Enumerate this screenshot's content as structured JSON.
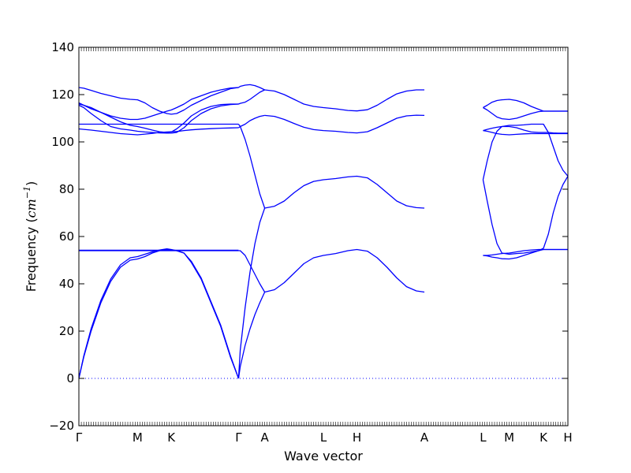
{
  "chart_data": {
    "type": "line",
    "title": "",
    "xlabel": "Wave vector",
    "ylabel": {
      "prefix": "Frequency (",
      "unit_main": "cm",
      "unit_exp": "−1",
      "suffix": ")"
    },
    "ylim": [
      -20,
      140
    ],
    "yticks": [
      -20,
      0,
      20,
      40,
      60,
      80,
      100,
      120,
      140
    ],
    "ytick_labels": [
      "−20",
      "0",
      "20",
      "40",
      "60",
      "80",
      "100",
      "120",
      "140"
    ],
    "xlim": [
      0,
      2.0
    ],
    "high_symmetry_points": [
      {
        "label": "Γ",
        "x": 0.0
      },
      {
        "label": "M",
        "x": 0.24
      },
      {
        "label": "K",
        "x": 0.378
      },
      {
        "label": "Γ",
        "x": 0.653
      },
      {
        "label": "A",
        "x": 0.76
      },
      {
        "label": "L",
        "x": 1.0
      },
      {
        "label": "H",
        "x": 1.137
      },
      {
        "label": "A",
        "x": 1.413
      },
      {
        "label": "L",
        "x": 1.653
      },
      {
        "label": "M",
        "x": 1.76
      },
      {
        "label": "K",
        "x": 1.9
      },
      {
        "label": "H",
        "x": 2.0
      }
    ],
    "zero_line": {
      "y": 0,
      "style": "dotted",
      "color": "#0000ff"
    },
    "line_color": "#0000ff",
    "segments": [
      {
        "name": "Γ-M-K-Γ",
        "x": [
          0.0,
          0.02,
          0.05,
          0.09,
          0.13,
          0.17,
          0.21,
          0.24,
          0.27,
          0.3,
          0.33,
          0.36,
          0.378,
          0.4,
          0.43,
          0.46,
          0.5,
          0.54,
          0.58,
          0.62,
          0.653
        ],
        "bands": [
          [
            0,
            9,
            20,
            32,
            41,
            47,
            50,
            50.5,
            51.5,
            53,
            54,
            54.5,
            54.3,
            54,
            53,
            49,
            42,
            32,
            22,
            9,
            0
          ],
          [
            0,
            9.5,
            21,
            33,
            42,
            48,
            51,
            51.5,
            52.5,
            53.5,
            54.3,
            54.8,
            54.5,
            54,
            53,
            49.5,
            42.5,
            32.5,
            22.5,
            9.5,
            0
          ],
          [
            54,
            54,
            54,
            54,
            54,
            54,
            54,
            54,
            54,
            54,
            54,
            54,
            54,
            54,
            54,
            54,
            54,
            54,
            54,
            54,
            54
          ],
          [
            54.2,
            54.2,
            54.2,
            54.2,
            54.2,
            54.2,
            54.2,
            54.2,
            54.2,
            54.2,
            54.2,
            54.2,
            54.2,
            54.2,
            54.2,
            54.2,
            54.2,
            54.2,
            54.2,
            54.2,
            54.2
          ],
          [
            105.5,
            105.3,
            105,
            104.5,
            104,
            103.5,
            103.2,
            103,
            103.3,
            103.6,
            104,
            104.2,
            104.3,
            104.4,
            104.8,
            105.1,
            105.4,
            105.6,
            105.8,
            105.9,
            106
          ],
          [
            115.5,
            114.5,
            112,
            109,
            106.5,
            105.5,
            105,
            104.5,
            104.2,
            104,
            103.8,
            103.7,
            103.7,
            104,
            106,
            109,
            112,
            114,
            115.2,
            115.8,
            116
          ],
          [
            107.5,
            107.5,
            107.5,
            107.5,
            107.5,
            107.5,
            107.5,
            107.5,
            107.5,
            107.5,
            107.5,
            107.5,
            107.5,
            107.5,
            107.5,
            107.5,
            107.5,
            107.5,
            107.5,
            107.5,
            107.5
          ],
          [
            116,
            115.5,
            114.5,
            112.5,
            110.5,
            108.5,
            107,
            106.5,
            105.8,
            105,
            104.3,
            104,
            104.2,
            105.5,
            108,
            111,
            113.5,
            115,
            115.8,
            116,
            116
          ],
          [
            123,
            122.7,
            121.8,
            120.5,
            119.5,
            118.5,
            118,
            117.8,
            116.5,
            114.5,
            113,
            112,
            111.7,
            112,
            113.5,
            115.5,
            117.5,
            119.5,
            121,
            122.5,
            123
          ],
          [
            116.5,
            115.5,
            114,
            112.5,
            111,
            110,
            109.5,
            109.5,
            110,
            111,
            112,
            113,
            113.5,
            114.5,
            116,
            118,
            119.5,
            121,
            122,
            122.8,
            123
          ]
        ]
      },
      {
        "name": "Γ-A",
        "x": [
          0.653,
          0.66,
          0.68,
          0.7,
          0.72,
          0.74,
          0.76
        ],
        "bands": [
          [
            0,
            5,
            14,
            21,
            27,
            32,
            36.5
          ],
          [
            0,
            12,
            30,
            45,
            57,
            66,
            72
          ],
          [
            54,
            54,
            52,
            48,
            44,
            40,
            36.5
          ],
          [
            107.5,
            106.5,
            101,
            94,
            86,
            78,
            72
          ],
          [
            106,
            106.5,
            107.5,
            109,
            110,
            110.8,
            111.2
          ],
          [
            116,
            116.3,
            116.8,
            118,
            119.5,
            121,
            122
          ],
          [
            123,
            123.5,
            124,
            124.2,
            123.8,
            123,
            122
          ]
        ]
      },
      {
        "name": "A-L-H-A",
        "x": [
          0.76,
          0.8,
          0.84,
          0.88,
          0.92,
          0.96,
          1.0,
          1.05,
          1.1,
          1.137,
          1.18,
          1.22,
          1.26,
          1.3,
          1.34,
          1.38,
          1.413
        ],
        "bands": [
          [
            36.5,
            37.5,
            40.5,
            44.5,
            48.5,
            51,
            52,
            52.8,
            54,
            54.5,
            53.8,
            51,
            47,
            42.5,
            38.8,
            37,
            36.5
          ],
          [
            72,
            72.8,
            75,
            78.5,
            81.5,
            83.3,
            84,
            84.5,
            85.2,
            85.5,
            84.8,
            82,
            78.5,
            75,
            73,
            72.2,
            72
          ],
          [
            111.2,
            110.8,
            109.5,
            107.8,
            106.2,
            105.2,
            104.8,
            104.5,
            104,
            103.8,
            104.3,
            106,
            108,
            110,
            111,
            111.3,
            111.2
          ],
          [
            122,
            121.5,
            120,
            118,
            116,
            115,
            114.5,
            114,
            113.3,
            113.1,
            113.6,
            115.5,
            118,
            120.3,
            121.5,
            122,
            122
          ]
        ]
      },
      {
        "name": "L-M-K-H",
        "x": [
          1.653,
          1.67,
          1.69,
          1.71,
          1.73,
          1.76,
          1.79,
          1.82,
          1.85,
          1.88,
          1.9,
          1.92,
          1.94,
          1.96,
          1.98,
          2.0
        ],
        "bands": [
          [
            52,
            51.8,
            51.3,
            51,
            50.6,
            50.5,
            51,
            52,
            53,
            54,
            54.5,
            54.5,
            54.5,
            54.5,
            54.5,
            54.5
          ],
          [
            52,
            52,
            52.2,
            52.5,
            52.8,
            53,
            53.5,
            54,
            54.3,
            54.5,
            54.5,
            54.5,
            54.5,
            54.5,
            54.5,
            54.5
          ],
          [
            84,
            75,
            65,
            57,
            53,
            52.5,
            52.8,
            53,
            53.5,
            54,
            55,
            61,
            70,
            77,
            82,
            85.5
          ],
          [
            84,
            92,
            100,
            104.5,
            106.5,
            107,
            107,
            107.2,
            107.5,
            107.5,
            107.5,
            104,
            98,
            92,
            88,
            85.5
          ],
          [
            104.8,
            104.5,
            104,
            103.5,
            103.2,
            103,
            103.2,
            103.4,
            103.5,
            103.5,
            103.5,
            103.5,
            103.5,
            103.5,
            103.5,
            103.5
          ],
          [
            104.8,
            105.3,
            105.8,
            106.2,
            106.5,
            106.5,
            106,
            105,
            104.2,
            104,
            104,
            104,
            103.8,
            103.7,
            103.7,
            103.7
          ],
          [
            114.5,
            113.5,
            112,
            110.5,
            109.8,
            109.5,
            110,
            111,
            112,
            112.8,
            113,
            113,
            113,
            113,
            113,
            113
          ],
          [
            114.5,
            115.5,
            116.8,
            117.5,
            117.8,
            118,
            117.5,
            116.5,
            115,
            113.8,
            113,
            113,
            113,
            113,
            113,
            113
          ]
        ]
      }
    ]
  }
}
